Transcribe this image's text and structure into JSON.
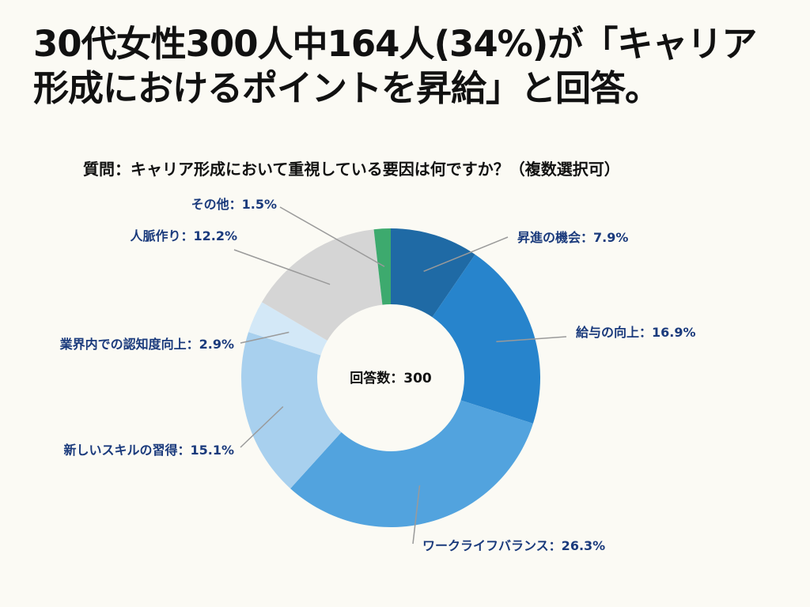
{
  "title": "30代女性300人中164人(34%)が「キャリア形成におけるポイントを昇給」と回答。",
  "subtitle": "質問：キャリア形成において重視している要因は何ですか？（複数選択可）",
  "colors": {
    "background": "#fbfaf4",
    "label_text": "#1a3a7c",
    "leader_line": "#9a9a9a"
  },
  "chart_data": {
    "type": "pie",
    "style": "donut",
    "center_label": "回答数：300",
    "unit": "%",
    "categories": [
      "昇進の機会",
      "給与の向上",
      "ワークライフバランス",
      "新しいスキルの習得",
      "業界内での認知度向上",
      "人脈作り",
      "その他"
    ],
    "values": [
      7.9,
      16.9,
      26.3,
      15.1,
      2.9,
      12.2,
      1.5
    ],
    "labels": [
      "昇進の機会：7.9%",
      "給与の向上：16.9%",
      "ワークライフバランス：26.3%",
      "新しいスキルの習得：15.1%",
      "業界内での認知度向上：2.9%",
      "人脈作り：12.2%",
      "その他：1.5%"
    ],
    "slice_colors": [
      "#1f6aa5",
      "#2784cc",
      "#52a3de",
      "#a8d0ee",
      "#d3e8f7",
      "#d5d5d5",
      "#3daa6e"
    ]
  }
}
